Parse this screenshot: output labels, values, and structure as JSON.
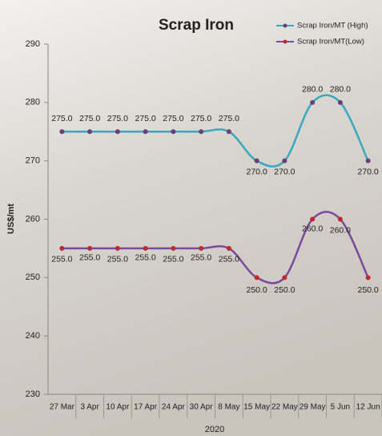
{
  "chart_data": {
    "type": "line",
    "title": "Scrap Iron",
    "x_label": "2020",
    "y_label": "US$/mt",
    "categories": [
      "27 Mar",
      "3 Apr",
      "10 Apr",
      "17 Apr",
      "24 Apr",
      "30 Apr",
      "8 May",
      "15 May",
      "22 May",
      "29 May",
      "5 Jun",
      "12 Jun"
    ],
    "series": [
      {
        "name": "Scrap Iron/MT (High)",
        "color": "#3aa9bd",
        "marker_color": "#6a3f7a",
        "values": [
          275,
          275,
          275,
          275,
          275,
          275,
          275,
          270,
          270,
          280,
          280,
          270
        ],
        "value_labels": [
          "275.0",
          "275.0",
          "275.0",
          "275.0",
          "275.0",
          "275.0",
          "275.0",
          "270.0",
          "270.0",
          "280.0",
          "280.0",
          "270.0"
        ]
      },
      {
        "name": "Scrap Iron/MT(Low)",
        "color": "#7b4a9c",
        "marker_color": "#c0282d",
        "values": [
          255,
          255,
          255,
          255,
          255,
          255,
          255,
          250,
          250,
          260,
          260,
          250
        ],
        "value_labels": [
          "255.0",
          "255.0",
          "255.0",
          "255.0",
          "255.0",
          "255.0",
          "255.0",
          "250.0",
          "250.0",
          "260.0",
          "260.0",
          "250.0"
        ]
      }
    ],
    "ylim": [
      230,
      290
    ],
    "yticks": [
      230,
      240,
      250,
      260,
      270,
      280,
      290
    ],
    "legend": "top-right"
  }
}
